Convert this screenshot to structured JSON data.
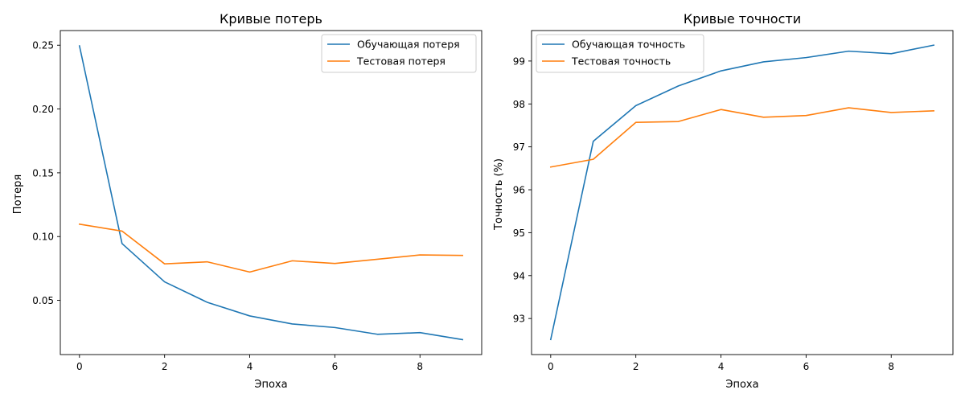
{
  "chart_data": [
    {
      "type": "line",
      "title": "Кривые потерь",
      "xlabel": "Эпоха",
      "ylabel": "Потеря",
      "xlim": [
        -0.45,
        9.45
      ],
      "ylim": [
        0.0075,
        0.2615
      ],
      "xticks": [
        0,
        2,
        4,
        6,
        8
      ],
      "xtick_labels": [
        "0",
        "2",
        "4",
        "6",
        "8"
      ],
      "yticks": [
        0.05,
        0.1,
        0.15,
        0.2,
        0.25
      ],
      "ytick_labels": [
        "0.05",
        "0.10",
        "0.15",
        "0.20",
        "0.25"
      ],
      "x": [
        0,
        1,
        2,
        3,
        4,
        5,
        6,
        7,
        8,
        9
      ],
      "series": [
        {
          "name": "Обучающая потеря",
          "color": "#1f77b4",
          "values": [
            0.2495,
            0.0945,
            0.0645,
            0.0485,
            0.0378,
            0.0315,
            0.0287,
            0.0234,
            0.0247,
            0.0192
          ]
        },
        {
          "name": "Тестовая потеря",
          "color": "#ff7f0e",
          "values": [
            0.1097,
            0.1043,
            0.0786,
            0.0802,
            0.0722,
            0.081,
            0.0789,
            0.0822,
            0.0856,
            0.0852
          ]
        }
      ],
      "legend": "top-right",
      "grid": false
    },
    {
      "type": "line",
      "title": "Кривые точности",
      "xlabel": "Эпоха",
      "ylabel": "Точность (%)",
      "xlim": [
        -0.45,
        9.45
      ],
      "ylim": [
        92.16,
        99.71
      ],
      "xticks": [
        0,
        2,
        4,
        6,
        8
      ],
      "xtick_labels": [
        "0",
        "2",
        "4",
        "6",
        "8"
      ],
      "yticks": [
        93,
        94,
        95,
        96,
        97,
        98,
        99
      ],
      "ytick_labels": [
        "93",
        "94",
        "95",
        "96",
        "97",
        "98",
        "99"
      ],
      "x": [
        0,
        1,
        2,
        3,
        4,
        5,
        6,
        7,
        8,
        9
      ],
      "series": [
        {
          "name": "Обучающая точность",
          "color": "#1f77b4",
          "values": [
            92.51,
            97.13,
            97.96,
            98.42,
            98.77,
            98.98,
            99.08,
            99.23,
            99.17,
            99.37
          ]
        },
        {
          "name": "Тестовая точность",
          "color": "#ff7f0e",
          "values": [
            96.53,
            96.71,
            97.57,
            97.59,
            97.87,
            97.69,
            97.73,
            97.91,
            97.8,
            97.84
          ]
        }
      ],
      "legend": "top-left",
      "grid": false
    }
  ]
}
